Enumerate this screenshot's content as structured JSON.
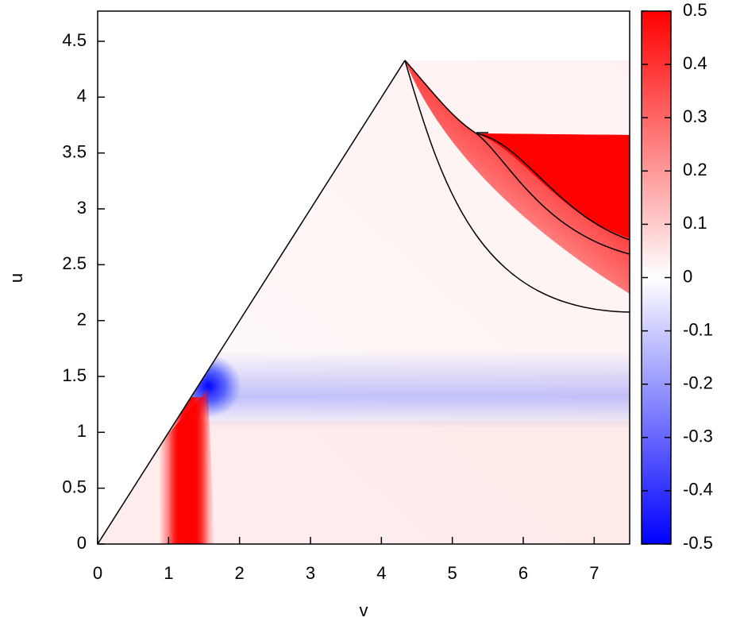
{
  "chart_data": {
    "type": "heatmap",
    "xlabel": "v",
    "ylabel": "u",
    "xlim": [
      0,
      7.5
    ],
    "ylim": [
      0,
      4.77
    ],
    "xticks": [
      0,
      1,
      2,
      3,
      4,
      5,
      6,
      7
    ],
    "yticks": [
      0,
      0.5,
      1,
      1.5,
      2,
      2.5,
      3,
      3.5,
      4,
      4.5
    ],
    "colorbar": {
      "lim": [
        -0.5,
        0.5
      ],
      "ticks": [
        -0.5,
        -0.4,
        -0.3,
        -0.2,
        -0.1,
        0,
        0.1,
        0.2,
        0.3,
        0.4,
        0.5
      ],
      "colors": [
        "#0000ff",
        "#ffffff",
        "#ff0000"
      ]
    }
  }
}
